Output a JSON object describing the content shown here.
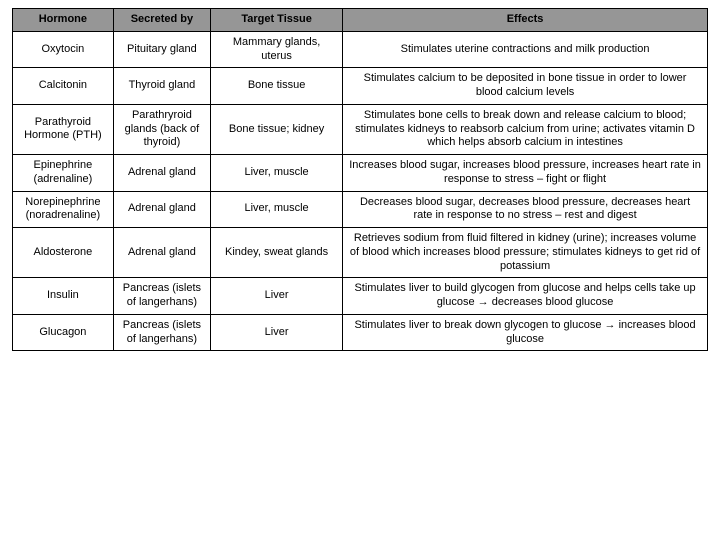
{
  "table": {
    "header_bg": "#969696",
    "columns": [
      "Hormone",
      "Secreted by",
      "Target Tissue",
      "Effects"
    ],
    "rows": [
      [
        "Oxytocin",
        "Pituitary gland",
        "Mammary glands, uterus",
        "Stimulates uterine contractions and milk production"
      ],
      [
        "Calcitonin",
        "Thyroid gland",
        "Bone tissue",
        "Stimulates calcium to be deposited in bone tissue in order to lower blood calcium levels"
      ],
      [
        "Parathyroid Hormone (PTH)",
        "Parathryroid glands (back of thyroid)",
        "Bone tissue; kidney",
        "Stimulates bone cells to break down and release calcium to blood; stimulates kidneys to reabsorb calcium from urine; activates vitamin D which helps absorb calcium in intestines"
      ],
      [
        "Epinephrine (adrenaline)",
        "Adrenal gland",
        "Liver, muscle",
        "Increases blood sugar, increases blood pressure, increases heart rate in response to stress – fight or flight"
      ],
      [
        "Norepinephrine (noradrenaline)",
        "Adrenal gland",
        "Liver, muscle",
        "Decreases blood sugar, decreases blood pressure, decreases heart rate in response to no stress – rest and digest"
      ],
      [
        "Aldosterone",
        "Adrenal gland",
        "Kindey, sweat glands",
        "Retrieves sodium from fluid filtered in kidney (urine); increases volume of blood which increases blood pressure; stimulates kidneys to get rid of potassium"
      ],
      [
        "Insulin",
        "Pancreas (islets of langerhans)",
        "Liver",
        "Stimulates liver to build glycogen from glucose and helps cells take up glucose → decreases blood glucose"
      ],
      [
        "Glucagon",
        "Pancreas (islets of langerhans)",
        "Liver",
        "Stimulates liver to break down glycogen to glucose → increases blood glucose"
      ]
    ]
  }
}
